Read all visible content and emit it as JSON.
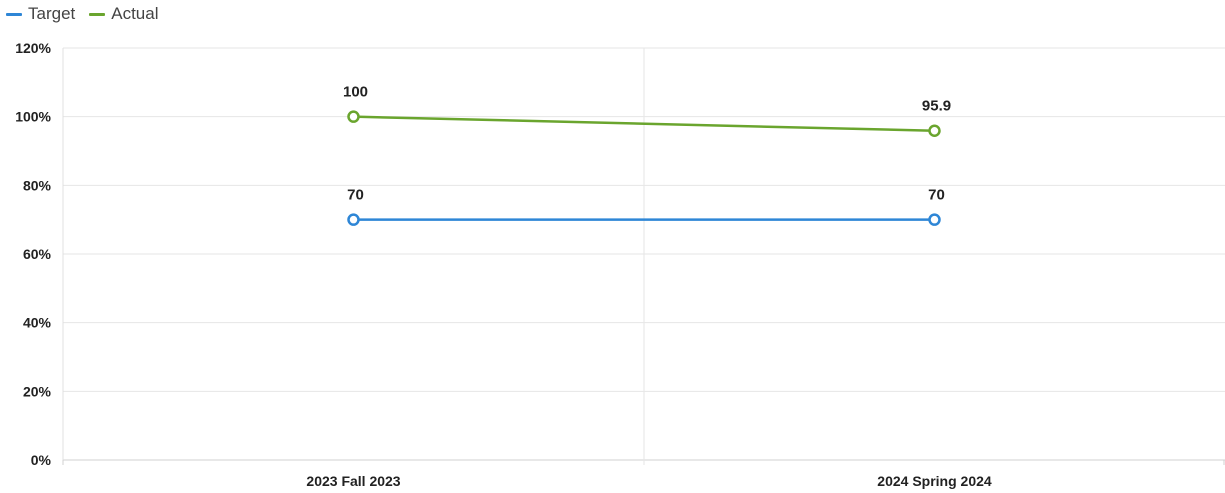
{
  "chart_data": {
    "type": "line",
    "categories": [
      "2023 Fall 2023",
      "2024 Spring 2024"
    ],
    "series": [
      {
        "name": "Target",
        "color": "#2E86D6",
        "values": [
          70,
          70
        ],
        "labels": [
          "70",
          "70"
        ]
      },
      {
        "name": "Actual",
        "color": "#6AA52E",
        "values": [
          100,
          95.9
        ],
        "labels": [
          "100",
          "95.9"
        ]
      }
    ],
    "ylim": [
      0,
      120
    ],
    "y_ticks": [
      0,
      20,
      40,
      60,
      80,
      100,
      120
    ],
    "y_tick_labels": [
      "0%",
      "20%",
      "40%",
      "60%",
      "80%",
      "100%",
      "120%"
    ],
    "y_unit": "%",
    "grid": true,
    "legend_position": "top-left",
    "marker": "hollow-circle"
  }
}
